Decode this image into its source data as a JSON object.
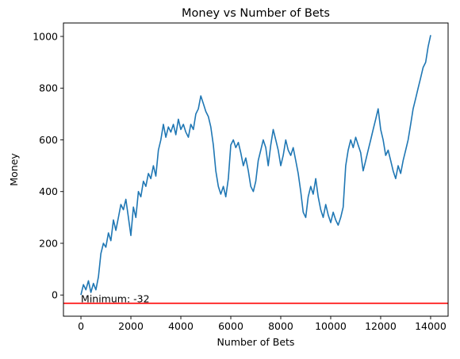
{
  "chart_data": {
    "type": "line",
    "title": "Money vs Number of Bets",
    "xlabel": "Number of Bets",
    "ylabel": "Money",
    "xlim": [
      -700,
      14700
    ],
    "ylim": [
      -82,
      1052
    ],
    "grid": false,
    "x_ticks": [
      0,
      2000,
      4000,
      6000,
      8000,
      10000,
      12000,
      14000
    ],
    "y_ticks": [
      0,
      200,
      400,
      600,
      800,
      1000
    ],
    "series": [
      {
        "color": "#1f77b4",
        "points": [
          [
            0,
            0
          ],
          [
            100,
            40
          ],
          [
            200,
            20
          ],
          [
            300,
            55
          ],
          [
            400,
            10
          ],
          [
            500,
            45
          ],
          [
            600,
            20
          ],
          [
            700,
            70
          ],
          [
            800,
            160
          ],
          [
            900,
            200
          ],
          [
            1000,
            185
          ],
          [
            1100,
            240
          ],
          [
            1200,
            210
          ],
          [
            1300,
            290
          ],
          [
            1400,
            250
          ],
          [
            1500,
            300
          ],
          [
            1600,
            350
          ],
          [
            1700,
            330
          ],
          [
            1800,
            370
          ],
          [
            1900,
            300
          ],
          [
            2000,
            230
          ],
          [
            2100,
            340
          ],
          [
            2200,
            300
          ],
          [
            2300,
            400
          ],
          [
            2400,
            380
          ],
          [
            2500,
            440
          ],
          [
            2600,
            420
          ],
          [
            2700,
            470
          ],
          [
            2800,
            450
          ],
          [
            2900,
            500
          ],
          [
            3000,
            460
          ],
          [
            3100,
            560
          ],
          [
            3200,
            600
          ],
          [
            3300,
            660
          ],
          [
            3400,
            610
          ],
          [
            3500,
            650
          ],
          [
            3600,
            630
          ],
          [
            3700,
            660
          ],
          [
            3800,
            620
          ],
          [
            3900,
            680
          ],
          [
            4000,
            640
          ],
          [
            4100,
            660
          ],
          [
            4200,
            630
          ],
          [
            4300,
            610
          ],
          [
            4400,
            660
          ],
          [
            4500,
            640
          ],
          [
            4600,
            700
          ],
          [
            4700,
            720
          ],
          [
            4800,
            770
          ],
          [
            4900,
            740
          ],
          [
            5000,
            710
          ],
          [
            5100,
            690
          ],
          [
            5200,
            650
          ],
          [
            5300,
            580
          ],
          [
            5400,
            480
          ],
          [
            5500,
            420
          ],
          [
            5600,
            390
          ],
          [
            5700,
            420
          ],
          [
            5800,
            380
          ],
          [
            5900,
            450
          ],
          [
            6000,
            580
          ],
          [
            6100,
            600
          ],
          [
            6200,
            570
          ],
          [
            6300,
            590
          ],
          [
            6400,
            550
          ],
          [
            6500,
            500
          ],
          [
            6600,
            530
          ],
          [
            6700,
            480
          ],
          [
            6800,
            420
          ],
          [
            6900,
            400
          ],
          [
            7000,
            440
          ],
          [
            7100,
            520
          ],
          [
            7200,
            560
          ],
          [
            7300,
            600
          ],
          [
            7400,
            570
          ],
          [
            7500,
            500
          ],
          [
            7600,
            580
          ],
          [
            7700,
            640
          ],
          [
            7800,
            600
          ],
          [
            7900,
            560
          ],
          [
            8000,
            500
          ],
          [
            8100,
            540
          ],
          [
            8200,
            600
          ],
          [
            8300,
            560
          ],
          [
            8400,
            540
          ],
          [
            8500,
            570
          ],
          [
            8600,
            520
          ],
          [
            8700,
            470
          ],
          [
            8800,
            400
          ],
          [
            8900,
            320
          ],
          [
            9000,
            300
          ],
          [
            9100,
            380
          ],
          [
            9200,
            420
          ],
          [
            9300,
            390
          ],
          [
            9400,
            450
          ],
          [
            9500,
            380
          ],
          [
            9600,
            330
          ],
          [
            9700,
            300
          ],
          [
            9800,
            350
          ],
          [
            9900,
            310
          ],
          [
            10000,
            280
          ],
          [
            10100,
            320
          ],
          [
            10200,
            290
          ],
          [
            10300,
            270
          ],
          [
            10400,
            300
          ],
          [
            10500,
            340
          ],
          [
            10600,
            500
          ],
          [
            10700,
            560
          ],
          [
            10800,
            600
          ],
          [
            10900,
            570
          ],
          [
            11000,
            610
          ],
          [
            11100,
            580
          ],
          [
            11200,
            550
          ],
          [
            11300,
            480
          ],
          [
            11400,
            520
          ],
          [
            11500,
            560
          ],
          [
            11600,
            600
          ],
          [
            11700,
            640
          ],
          [
            11800,
            680
          ],
          [
            11900,
            720
          ],
          [
            12000,
            640
          ],
          [
            12100,
            600
          ],
          [
            12200,
            540
          ],
          [
            12300,
            560
          ],
          [
            12400,
            520
          ],
          [
            12500,
            480
          ],
          [
            12600,
            450
          ],
          [
            12700,
            500
          ],
          [
            12800,
            470
          ],
          [
            12900,
            520
          ],
          [
            13000,
            560
          ],
          [
            13100,
            600
          ],
          [
            13200,
            660
          ],
          [
            13300,
            720
          ],
          [
            13400,
            760
          ],
          [
            13500,
            800
          ],
          [
            13600,
            840
          ],
          [
            13700,
            880
          ],
          [
            13800,
            900
          ],
          [
            13900,
            960
          ],
          [
            14000,
            1005
          ]
        ]
      }
    ],
    "hline": {
      "y": -32,
      "color": "#ff0000"
    },
    "annotation": {
      "text": "Minimum: -32",
      "x": 0,
      "y": -32
    }
  }
}
